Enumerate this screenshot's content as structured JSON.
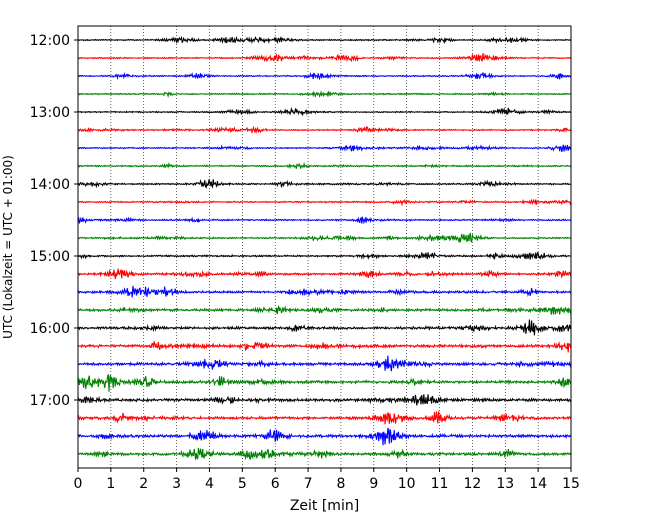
{
  "chart_data": {
    "type": "line",
    "title": "",
    "xlabel": "Zeit  [min]",
    "ylabel": "UTC (Lokalzeit = UTC + 01:00)",
    "xlim": [
      0,
      15
    ],
    "x_ticks": [
      0,
      1,
      2,
      3,
      4,
      5,
      6,
      7,
      8,
      9,
      10,
      11,
      12,
      13,
      14,
      15
    ],
    "x_tick_labels": [
      "0",
      "1",
      "2",
      "3",
      "4",
      "5",
      "6",
      "7",
      "8",
      "9",
      "10",
      "11",
      "12",
      "13",
      "14",
      "15"
    ],
    "y_ticks": [
      "12:00",
      "13:00",
      "14:00",
      "15:00",
      "16:00",
      "17:00"
    ],
    "grid": "vertical dotted",
    "trace_interval_minutes": 15,
    "trace_colors": [
      "#000000",
      "#ff0000",
      "#0000ff",
      "#008000"
    ],
    "series": [
      {
        "start": "12:00",
        "amplitude": 0.25
      },
      {
        "start": "12:15",
        "amplitude": 0.25
      },
      {
        "start": "12:30",
        "amplitude": 0.25
      },
      {
        "start": "12:45",
        "amplitude": 0.25
      },
      {
        "start": "13:00",
        "amplitude": 0.25
      },
      {
        "start": "13:15",
        "amplitude": 0.25
      },
      {
        "start": "13:30",
        "amplitude": 0.25
      },
      {
        "start": "13:45",
        "amplitude": 0.3
      },
      {
        "start": "14:00",
        "amplitude": 0.3
      },
      {
        "start": "14:15",
        "amplitude": 0.3
      },
      {
        "start": "14:30",
        "amplitude": 0.3
      },
      {
        "start": "14:45",
        "amplitude": 0.3
      },
      {
        "start": "15:00",
        "amplitude": 0.35
      },
      {
        "start": "15:15",
        "amplitude": 0.4
      },
      {
        "start": "15:30",
        "amplitude": 0.45
      },
      {
        "start": "15:45",
        "amplitude": 0.5
      },
      {
        "start": "16:00",
        "amplitude": 0.5
      },
      {
        "start": "16:15",
        "amplitude": 0.55
      },
      {
        "start": "16:30",
        "amplitude": 0.55
      },
      {
        "start": "16:45",
        "amplitude": 0.6
      },
      {
        "start": "17:00",
        "amplitude": 0.55
      },
      {
        "start": "17:15",
        "amplitude": 0.55
      },
      {
        "start": "17:30",
        "amplitude": 0.6
      },
      {
        "start": "17:45",
        "amplitude": 0.55
      }
    ]
  }
}
